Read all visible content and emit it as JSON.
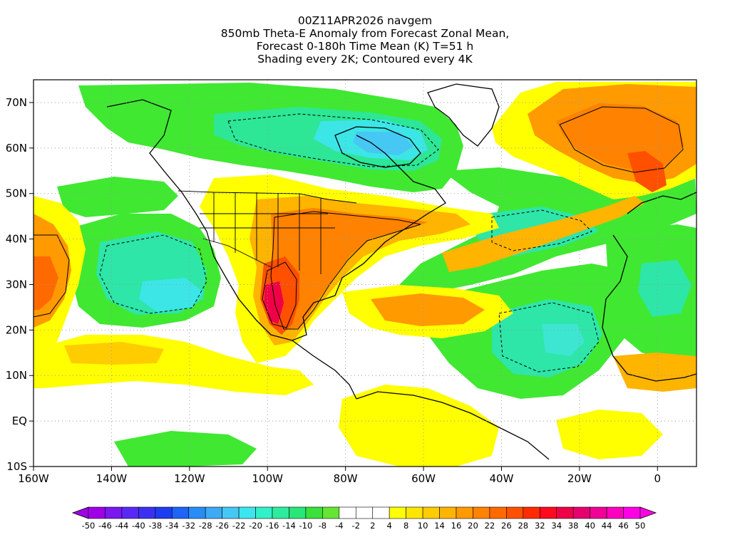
{
  "title": {
    "lines": [
      "00Z11APR2026 navgem",
      "850mb Theta-E Anomaly from Forecast Zonal Mean,",
      "Forecast 0-180h Time Mean (K) T=51 h",
      "Shading every 2K; Contoured every 4K"
    ]
  },
  "map": {
    "lon_range": [
      -160,
      10
    ],
    "lat_range": [
      -10,
      75
    ],
    "lon_ticks": [
      {
        "value": -160,
        "label": "160W"
      },
      {
        "value": -140,
        "label": "140W"
      },
      {
        "value": -120,
        "label": "120W"
      },
      {
        "value": -100,
        "label": "100W"
      },
      {
        "value": -80,
        "label": "80W"
      },
      {
        "value": -60,
        "label": "60W"
      },
      {
        "value": -40,
        "label": "40W"
      },
      {
        "value": -20,
        "label": "20W"
      },
      {
        "value": 0,
        "label": "0"
      }
    ],
    "lat_ticks": [
      {
        "value": -10,
        "label": "10S"
      },
      {
        "value": 0,
        "label": "EQ"
      },
      {
        "value": 10,
        "label": "10N"
      },
      {
        "value": 20,
        "label": "20N"
      },
      {
        "value": 30,
        "label": "30N"
      },
      {
        "value": 40,
        "label": "40N"
      },
      {
        "value": 50,
        "label": "50N"
      },
      {
        "value": 60,
        "label": "60N"
      },
      {
        "value": 70,
        "label": "70N"
      }
    ],
    "grid": "dotted",
    "anomaly_regions": [
      {
        "name": "Canada negative anomaly",
        "value": -18,
        "lon": -95,
        "lat": 63
      },
      {
        "name": "Hudson Bay minimum",
        "value": -26,
        "lon": -90,
        "lat": 61
      },
      {
        "name": "NE Pacific negative anomaly",
        "value": -14,
        "lon": -133,
        "lat": 33
      },
      {
        "name": "North Atlantic negative anomaly",
        "value": -14,
        "lon": -50,
        "lat": 43
      },
      {
        "name": "Tropical Atlantic negative anomaly",
        "value": -16,
        "lon": -35,
        "lat": 22
      },
      {
        "name": "West Africa negative anomaly",
        "value": -12,
        "lon": -5,
        "lat": 25
      },
      {
        "name": "Central US / Gulf positive anomaly",
        "value": 26,
        "lon": -97,
        "lat": 28
      },
      {
        "name": "Greenland Sea / Europe positive anomaly",
        "value": 20,
        "lon": -5,
        "lat": 60
      },
      {
        "name": "Subtropical Pacific positive anomaly",
        "value": 16,
        "lon": -150,
        "lat": 30
      },
      {
        "name": "Caribbean positive anomaly",
        "value": 14,
        "lon": -70,
        "lat": 22
      }
    ]
  },
  "colorbar": {
    "labels": [
      "-50",
      "-46",
      "-44",
      "-40",
      "-38",
      "-34",
      "-32",
      "-28",
      "-26",
      "-22",
      "-20",
      "-16",
      "-14",
      "-10",
      "-8",
      "-4",
      "-2",
      "2",
      "4",
      "8",
      "10",
      "14",
      "16",
      "20",
      "22",
      "26",
      "28",
      "32",
      "34",
      "38",
      "40",
      "44",
      "46",
      "50"
    ],
    "colors": [
      "#a000e6",
      "#7a18f0",
      "#5a28f5",
      "#3c30f0",
      "#1e3cf0",
      "#1e64f5",
      "#288cf5",
      "#3caaf5",
      "#46c8f5",
      "#3ce6f0",
      "#32f0c8",
      "#2dec9e",
      "#28e678",
      "#3ae03c",
      "#64e632",
      "#ffffff",
      "#ffffff",
      "#ffffff",
      "#ffff00",
      "#ffe600",
      "#ffcc00",
      "#ffb400",
      "#ff9a00",
      "#ff8200",
      "#ff6a00",
      "#ff5000",
      "#ff2c00",
      "#ff0a1e",
      "#f00046",
      "#e6006e",
      "#f00096",
      "#ff00be",
      "#ff00e6"
    ]
  }
}
